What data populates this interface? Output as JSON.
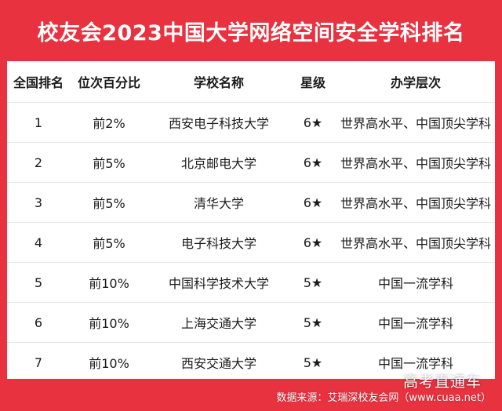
{
  "title": "校友会2023中国大学网络空间安全学科排名",
  "table": {
    "headers": [
      "全国排名",
      "位次百分比",
      "学校名称",
      "星级",
      "办学层次"
    ],
    "rows": [
      [
        "1",
        "前2%",
        "西安电子科技大学",
        "6★",
        "世界高水平、中国顶尖学科"
      ],
      [
        "2",
        "前5%",
        "北京邮电大学",
        "6★",
        "世界高水平、中国顶尖学科"
      ],
      [
        "3",
        "前5%",
        "清华大学",
        "6★",
        "世界高水平、中国顶尖学科"
      ],
      [
        "4",
        "前5%",
        "电子科技大学",
        "6★",
        "世界高水平、中国顶尖学科"
      ],
      [
        "5",
        "前10%",
        "中国科学技术大学",
        "5★",
        "中国一流学科"
      ],
      [
        "6",
        "前10%",
        "上海交通大学",
        "5★",
        "中国一流学科"
      ],
      [
        "7",
        "前10%",
        "西安交通大学",
        "5★",
        "中国一流学科"
      ]
    ]
  },
  "watermark": "高考直通车",
  "source": "数据来源：艾瑞深校友会网（www.cuaa.net）",
  "colors": {
    "background": "#e8323f",
    "card": "#ffffff",
    "text": "#1a1a1a"
  }
}
